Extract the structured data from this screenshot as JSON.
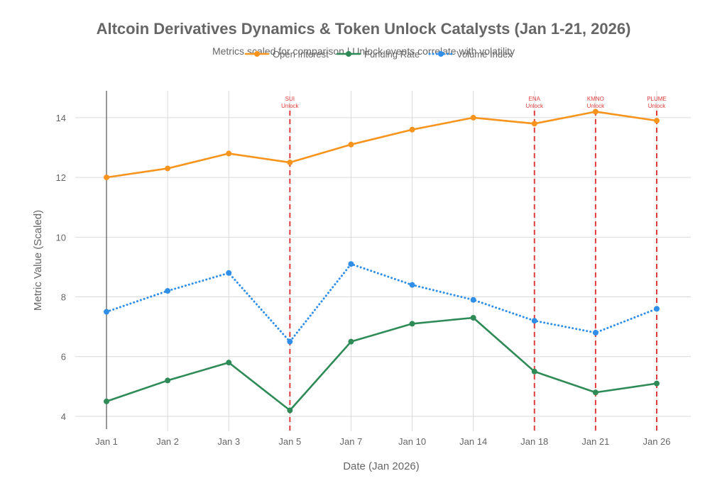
{
  "chart_data": {
    "type": "line",
    "title": "Altcoin Derivatives Dynamics & Token Unlock Catalysts (Jan 1-21, 2026)",
    "subtitle": "Metrics scaled for comparison | Unlock events correlate with volatility",
    "xlabel": "Date (Jan 2026)",
    "ylabel": "Metric Value (Scaled)",
    "categories": [
      "Jan 1",
      "Jan 2",
      "Jan 3",
      "Jan 5",
      "Jan 7",
      "Jan 10",
      "Jan 14",
      "Jan 18",
      "Jan 21",
      "Jan 26"
    ],
    "ylim": [
      3.5,
      14.9
    ],
    "yticks": [
      4,
      6,
      8,
      10,
      12,
      14
    ],
    "grid": true,
    "legend_position": "top-center",
    "series": [
      {
        "name": "Open Interest",
        "color": "#F7941D",
        "style": "solid",
        "values": [
          12.0,
          12.3,
          12.8,
          12.5,
          13.1,
          13.6,
          14.0,
          13.8,
          14.2,
          13.9
        ]
      },
      {
        "name": "Funding Rate",
        "color": "#2E8B57",
        "style": "solid",
        "values": [
          4.5,
          5.2,
          5.8,
          4.2,
          6.5,
          7.1,
          7.3,
          5.5,
          4.8,
          5.1
        ]
      },
      {
        "name": "Volume Index",
        "color": "#2F8FE8",
        "style": "dotted",
        "values": [
          7.5,
          8.2,
          8.8,
          6.5,
          9.1,
          8.4,
          7.9,
          7.2,
          6.8,
          7.6
        ]
      }
    ],
    "annotations": [
      {
        "category": "Jan 5",
        "line1": "SUI",
        "line2": "Unlock",
        "color": "#E03C3C"
      },
      {
        "category": "Jan 18",
        "line1": "ENA",
        "line2": "Unlock",
        "color": "#E03C3C"
      },
      {
        "category": "Jan 21",
        "line1": "KMNO",
        "line2": "Unlock",
        "color": "#E03C3C"
      },
      {
        "category": "Jan 26",
        "line1": "PLUME",
        "line2": "Unlock",
        "color": "#E03C3C"
      }
    ]
  }
}
